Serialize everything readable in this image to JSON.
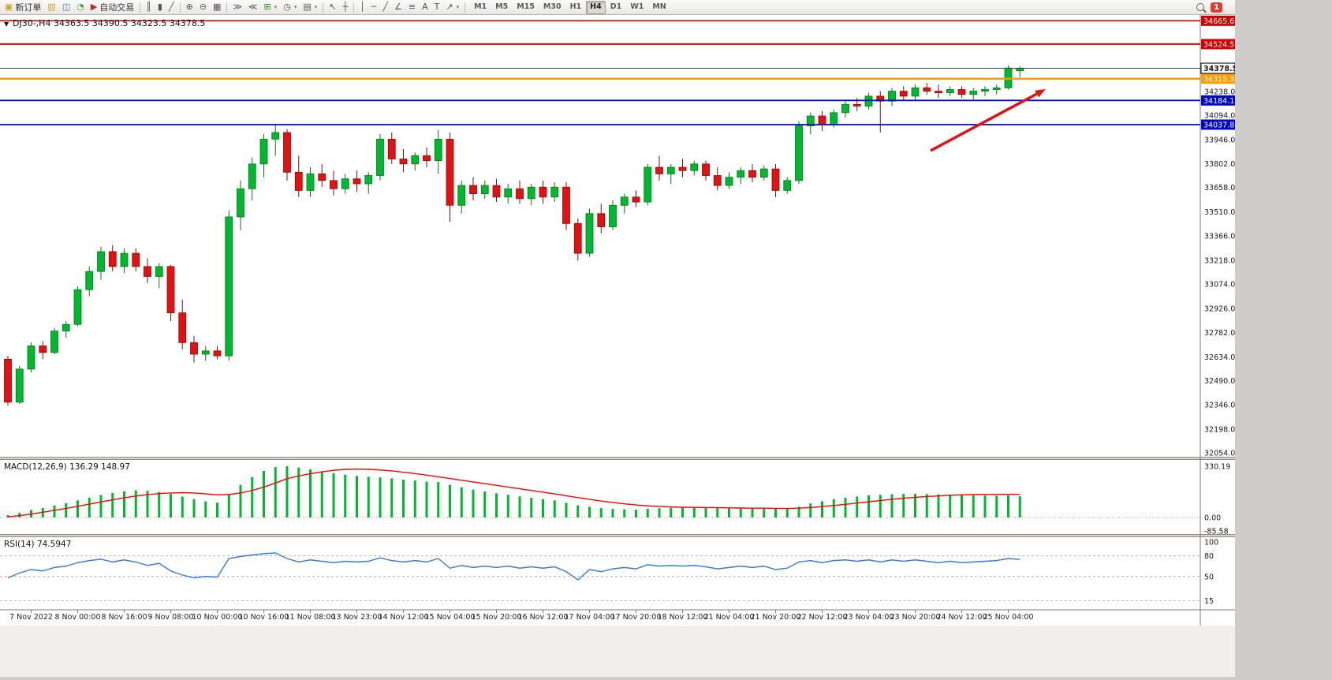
{
  "toolbar": {
    "items": [
      {
        "type": "labelbtn",
        "name": "new-order-button",
        "icon_name": "new-order-icon",
        "glyph": "▣",
        "color": "#c9a227",
        "label": "新订单"
      },
      {
        "type": "icon",
        "name": "charts-grid-icon",
        "glyph": "▥",
        "color": "#c9a227"
      },
      {
        "type": "icon",
        "name": "profiles-icon",
        "glyph": "◫",
        "color": "#4a6fb5"
      },
      {
        "type": "icon",
        "name": "refresh-icon",
        "glyph": "◔",
        "color": "#3f9d3f"
      },
      {
        "type": "labelbtn",
        "name": "auto-trading-button",
        "icon_name": "autotrading-icon",
        "glyph": "▶",
        "color": "#cc2222",
        "label": "自动交易"
      },
      {
        "type": "sep"
      },
      {
        "type": "icon",
        "name": "bar-chart-icon",
        "glyph": "║"
      },
      {
        "type": "icon",
        "name": "candlestick-chart-icon",
        "glyph": "▮"
      },
      {
        "type": "icon",
        "name": "line-chart-icon",
        "glyph": "╱"
      },
      {
        "type": "sep"
      },
      {
        "type": "icon",
        "name": "zoom-in-icon",
        "glyph": "⊕"
      },
      {
        "type": "icon",
        "name": "zoom-out-icon",
        "glyph": "⊖"
      },
      {
        "type": "icon",
        "name": "tile-windows-icon",
        "glyph": "▦"
      },
      {
        "type": "sep"
      },
      {
        "type": "icon",
        "name": "auto-scroll-icon",
        "glyph": "≫"
      },
      {
        "type": "icon",
        "name": "chart-shift-icon",
        "glyph": "≪"
      },
      {
        "type": "icon",
        "name": "indicators-icon",
        "glyph": "⊞",
        "color": "#2d8f2d",
        "caret": true
      },
      {
        "type": "icon",
        "name": "periods-icon",
        "glyph": "◷",
        "caret": true
      },
      {
        "type": "icon",
        "name": "templates-icon",
        "glyph": "▤",
        "caret": true
      },
      {
        "type": "sep"
      },
      {
        "type": "icon",
        "name": "cursor-icon",
        "glyph": "↖"
      },
      {
        "type": "icon",
        "name": "crosshair-icon",
        "glyph": "┼"
      },
      {
        "type": "sep"
      },
      {
        "type": "icon",
        "name": "vertical-line-icon",
        "glyph": "│"
      },
      {
        "type": "icon",
        "name": "horizontal-line-icon",
        "glyph": "─"
      },
      {
        "type": "icon",
        "name": "trendline-icon",
        "glyph": "╱"
      },
      {
        "type": "icon",
        "name": "equidistant-channel-icon",
        "glyph": "∠"
      },
      {
        "type": "icon",
        "name": "fibonacci-icon",
        "glyph": "≡"
      },
      {
        "type": "icon",
        "name": "text-icon",
        "glyph": "A"
      },
      {
        "type": "icon",
        "name": "text-label-icon",
        "glyph": "T"
      },
      {
        "type": "icon",
        "name": "arrows-icon",
        "glyph": "↗",
        "caret": true
      },
      {
        "type": "sep"
      }
    ],
    "timeframes": [
      {
        "label": "M1"
      },
      {
        "label": "M5"
      },
      {
        "label": "M15"
      },
      {
        "label": "M30"
      },
      {
        "label": "H1"
      },
      {
        "label": "H4",
        "active": true
      },
      {
        "label": "D1"
      },
      {
        "label": "W1"
      },
      {
        "label": "MN"
      }
    ],
    "notification_count": "1"
  },
  "main_legend": {
    "symbol": "DJ30-,H4",
    "ohlc": "34363.5 34390.5 34323.5 34378.5"
  },
  "chart_data": {
    "type": "candlestick",
    "symbol": "DJ30-",
    "timeframe": "H4",
    "ohlc_legend": {
      "open": "34363.5",
      "high": "34390.5",
      "low": "34323.5",
      "close": "34378.5"
    },
    "last_price": "34378.5",
    "colors": {
      "up": "#00b830",
      "up_stroke": "#007a18",
      "down": "#e31212",
      "down_stroke": "#8f0a0a",
      "macd_histogram": "#00b830",
      "macd_signal": "#ff0000",
      "rsi": "#3a7bd5"
    },
    "candles": [
      [
        32620,
        32640,
        32340,
        32360
      ],
      [
        32360,
        32580,
        32350,
        32560
      ],
      [
        32560,
        32720,
        32540,
        32700
      ],
      [
        32700,
        32730,
        32620,
        32660
      ],
      [
        32660,
        32810,
        32650,
        32790
      ],
      [
        32790,
        32850,
        32750,
        32830
      ],
      [
        32830,
        33060,
        32820,
        33040
      ],
      [
        33040,
        33180,
        33000,
        33150
      ],
      [
        33150,
        33300,
        33100,
        33270
      ],
      [
        33270,
        33310,
        33150,
        33180
      ],
      [
        33180,
        33290,
        33140,
        33260
      ],
      [
        33260,
        33290,
        33150,
        33180
      ],
      [
        33180,
        33230,
        33080,
        33120
      ],
      [
        33120,
        33200,
        33050,
        33180
      ],
      [
        33180,
        33190,
        32850,
        32900
      ],
      [
        32900,
        32980,
        32680,
        32720
      ],
      [
        32720,
        32760,
        32600,
        32650
      ],
      [
        32650,
        32700,
        32610,
        32670
      ],
      [
        32670,
        32700,
        32620,
        32640
      ],
      [
        32640,
        33520,
        32610,
        33480
      ],
      [
        33480,
        33700,
        33400,
        33650
      ],
      [
        33650,
        33840,
        33580,
        33800
      ],
      [
        33800,
        33980,
        33720,
        33950
      ],
      [
        33950,
        34040,
        33850,
        33990
      ],
      [
        33990,
        34010,
        33700,
        33750
      ],
      [
        33750,
        33850,
        33600,
        33640
      ],
      [
        33640,
        33780,
        33600,
        33740
      ],
      [
        33740,
        33800,
        33660,
        33700
      ],
      [
        33700,
        33760,
        33610,
        33650
      ],
      [
        33650,
        33740,
        33620,
        33710
      ],
      [
        33710,
        33760,
        33630,
        33680
      ],
      [
        33680,
        33750,
        33620,
        33730
      ],
      [
        33730,
        33980,
        33700,
        33950
      ],
      [
        33950,
        33990,
        33800,
        33830
      ],
      [
        33830,
        33890,
        33750,
        33800
      ],
      [
        33800,
        33870,
        33760,
        33850
      ],
      [
        33850,
        33900,
        33780,
        33820
      ],
      [
        33820,
        34005,
        33740,
        33950
      ],
      [
        33950,
        33990,
        33450,
        33550
      ],
      [
        33550,
        33700,
        33500,
        33670
      ],
      [
        33670,
        33720,
        33580,
        33620
      ],
      [
        33620,
        33700,
        33590,
        33670
      ],
      [
        33670,
        33710,
        33570,
        33600
      ],
      [
        33600,
        33680,
        33560,
        33650
      ],
      [
        33650,
        33700,
        33560,
        33590
      ],
      [
        33590,
        33680,
        33550,
        33660
      ],
      [
        33660,
        33700,
        33560,
        33600
      ],
      [
        33600,
        33690,
        33570,
        33660
      ],
      [
        33660,
        33690,
        33400,
        33440
      ],
      [
        33440,
        33470,
        33215,
        33260
      ],
      [
        33260,
        33530,
        33240,
        33500
      ],
      [
        33500,
        33560,
        33380,
        33420
      ],
      [
        33420,
        33580,
        33400,
        33550
      ],
      [
        33550,
        33620,
        33500,
        33600
      ],
      [
        33600,
        33640,
        33540,
        33570
      ],
      [
        33570,
        33800,
        33550,
        33780
      ],
      [
        33780,
        33850,
        33700,
        33740
      ],
      [
        33740,
        33800,
        33680,
        33780
      ],
      [
        33780,
        33830,
        33720,
        33760
      ],
      [
        33760,
        33820,
        33730,
        33800
      ],
      [
        33800,
        33820,
        33700,
        33730
      ],
      [
        33730,
        33780,
        33640,
        33670
      ],
      [
        33670,
        33750,
        33650,
        33720
      ],
      [
        33720,
        33780,
        33680,
        33760
      ],
      [
        33760,
        33800,
        33690,
        33720
      ],
      [
        33720,
        33790,
        33700,
        33770
      ],
      [
        33770,
        33800,
        33600,
        33640
      ],
      [
        33640,
        33720,
        33620,
        33700
      ],
      [
        33700,
        34060,
        33680,
        34030
      ],
      [
        34030,
        34110,
        33980,
        34090
      ],
      [
        34090,
        34120,
        34000,
        34040
      ],
      [
        34040,
        34130,
        34020,
        34110
      ],
      [
        34110,
        34180,
        34080,
        34160
      ],
      [
        34160,
        34200,
        34120,
        34150
      ],
      [
        34150,
        34230,
        34130,
        34210
      ],
      [
        34210,
        34240,
        33990,
        34180
      ],
      [
        34180,
        34260,
        34150,
        34240
      ],
      [
        34240,
        34270,
        34180,
        34210
      ],
      [
        34210,
        34280,
        34190,
        34260
      ],
      [
        34260,
        34290,
        34220,
        34240
      ],
      [
        34240,
        34280,
        34200,
        34230
      ],
      [
        34230,
        34270,
        34210,
        34250
      ],
      [
        34250,
        34270,
        34200,
        34220
      ],
      [
        34220,
        34260,
        34190,
        34240
      ],
      [
        34240,
        34270,
        34210,
        34250
      ],
      [
        34250,
        34280,
        34220,
        34260
      ],
      [
        34260,
        34395,
        34250,
        34380
      ],
      [
        34363.5,
        34390.5,
        34323.5,
        34378.5
      ]
    ],
    "price_ticks": [
      "34238.0",
      "34094.0",
      "33946.0",
      "33802.0",
      "33658.0",
      "33510.0",
      "33366.0",
      "33218.0",
      "33074.0",
      "32926.0",
      "32782.0",
      "32634.0",
      "32490.0",
      "32346.0",
      "32198.0",
      "32054.0"
    ],
    "hlines": [
      {
        "value": 34665.6,
        "color": "#d40000",
        "width": 1.6
      },
      {
        "value": 34524.5,
        "color": "#d40000",
        "width": 2
      },
      {
        "value": 34315.3,
        "color": "#ff9d00",
        "width": 2.4
      },
      {
        "value": 34184.1,
        "color": "#0008c8",
        "width": 1.8
      },
      {
        "value": 34037.8,
        "color": "#0008c8",
        "width": 1.8
      }
    ],
    "time_labels": [
      {
        "i": 2,
        "t": "7 Nov 2022"
      },
      {
        "i": 6,
        "t": "8 Nov 00:00"
      },
      {
        "i": 10,
        "t": "8 Nov 16:00"
      },
      {
        "i": 14,
        "t": "9 Nov 08:00"
      },
      {
        "i": 18,
        "t": "10 Nov 00:00"
      },
      {
        "i": 22,
        "t": "10 Nov 16:00"
      },
      {
        "i": 26,
        "t": "11 Nov 08:00"
      },
      {
        "i": 30,
        "t": "13 Nov 23:00"
      },
      {
        "i": 34,
        "t": "14 Nov 12:00"
      },
      {
        "i": 38,
        "t": "15 Nov 04:00"
      },
      {
        "i": 42,
        "t": "15 Nov 20:00"
      },
      {
        "i": 46,
        "t": "16 Nov 12:00"
      },
      {
        "i": 50,
        "t": "17 Nov 04:00"
      },
      {
        "i": 54,
        "t": "17 Nov 20:00"
      },
      {
        "i": 58,
        "t": "18 Nov 12:00"
      },
      {
        "i": 62,
        "t": "21 Nov 04:00"
      },
      {
        "i": 66,
        "t": "21 Nov 20:00"
      },
      {
        "i": 70,
        "t": "22 Nov 12:00"
      },
      {
        "i": 74,
        "t": "23 Nov 04:00"
      },
      {
        "i": 78,
        "t": "23 Nov 20:00"
      },
      {
        "i": 82,
        "t": "24 Nov 12:00"
      },
      {
        "i": 86,
        "t": "25 Nov 04:00"
      }
    ],
    "macd": {
      "label": "MACD(12,26,9) 136.29 148.97",
      "scale_labels": [
        "330.19",
        "0.00",
        "-85.58"
      ],
      "histogram": [
        15,
        30,
        48,
        62,
        78,
        92,
        110,
        128,
        145,
        158,
        168,
        175,
        172,
        165,
        152,
        135,
        118,
        104,
        95,
        150,
        210,
        260,
        300,
        325,
        330,
        322,
        310,
        298,
        286,
        276,
        268,
        262,
        258,
        252,
        244,
        238,
        230,
        228,
        210,
        195,
        180,
        168,
        156,
        146,
        136,
        127,
        118,
        110,
        95,
        78,
        68,
        60,
        55,
        52,
        50,
        56,
        60,
        62,
        63,
        64,
        63,
        60,
        58,
        58,
        59,
        60,
        56,
        54,
        70,
        90,
        105,
        118,
        128,
        135,
        142,
        146,
        150,
        152,
        152,
        151,
        149,
        147,
        145,
        143,
        142,
        141,
        143,
        136.29
      ],
      "signal": [
        5,
        12,
        22,
        34,
        46,
        58,
        72,
        86,
        100,
        114,
        127,
        138,
        147,
        154,
        158,
        160,
        158,
        152,
        146,
        148,
        158,
        174,
        196,
        222,
        250,
        268,
        282,
        294,
        304,
        310,
        312,
        310,
        306,
        300,
        292,
        283,
        273,
        262,
        251,
        240,
        229,
        218,
        207,
        196,
        185,
        174,
        163,
        152,
        140,
        128,
        117,
        106,
        97,
        88,
        81,
        75,
        71,
        68,
        66,
        65,
        64,
        63,
        62,
        61,
        60,
        60,
        59,
        58,
        60,
        64,
        70,
        77,
        85,
        93,
        101,
        109,
        117,
        124,
        130,
        135,
        139,
        143,
        146,
        148,
        148.5,
        149,
        149.3,
        148.97
      ]
    },
    "rsi": {
      "label": "RSI(14) 74.5947",
      "scale_labels": [
        "100",
        "80",
        "50",
        "15"
      ],
      "levels": [
        80,
        50,
        15
      ],
      "values": [
        48,
        55,
        60,
        58,
        63,
        65,
        70,
        73,
        75,
        71,
        74,
        71,
        66,
        69,
        58,
        52,
        48,
        50,
        49,
        76,
        79,
        81,
        83,
        84,
        76,
        71,
        74,
        72,
        70,
        72,
        71,
        72,
        77,
        73,
        71,
        73,
        71,
        76,
        62,
        66,
        63,
        65,
        63,
        65,
        62,
        64,
        62,
        64,
        57,
        45,
        60,
        57,
        61,
        63,
        61,
        67,
        65,
        66,
        65,
        66,
        64,
        61,
        63,
        65,
        63,
        65,
        60,
        62,
        71,
        73,
        70,
        73,
        74,
        72,
        74,
        71,
        74,
        72,
        74,
        72,
        70,
        72,
        70,
        71,
        72,
        73,
        76,
        74.59
      ]
    },
    "annotations": [
      {
        "type": "arrow",
        "from": [
          1180,
          172
        ],
        "to": [
          1326,
          94
        ],
        "color": "#e01212"
      }
    ]
  }
}
